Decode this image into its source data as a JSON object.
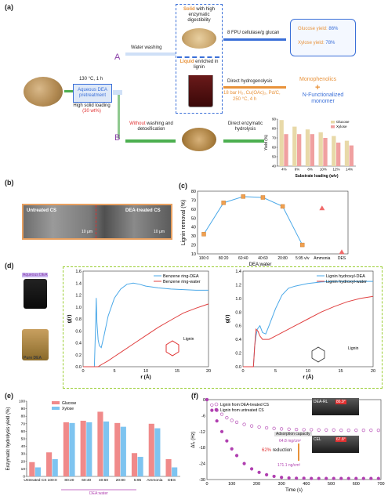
{
  "panel_labels": {
    "a": "(a)",
    "b": "(b)",
    "c": "(c)",
    "d": "(d)",
    "e": "(e)",
    "f": "(f)"
  },
  "panel_a": {
    "pretreat_conditions": "130 °C, 1 h",
    "pretreat_box": "Aqueous DEA pretreatment",
    "solid_loading": "High solid loading",
    "solid_loading_pct": "(30 wt%)",
    "route_A": "A",
    "route_B": "B",
    "water_washing": "Water washing",
    "solid_bold": "Solid",
    "solid_desc": "with high enzymatic digestibility",
    "liquid_bold": "Liquid",
    "liquid_desc": "enriched in lignin",
    "enzyme_dose": "8 FPU cellulase/g glucan",
    "glucose_yield_label": "Glucose yield: ",
    "glucose_yield_value": "86%",
    "xylose_yield_label": "Xylose yield: ",
    "xylose_yield_value": "78%",
    "hydrogenolysis": "Direct hydrogenolysis",
    "hydro_conditions_1": "18 bar H₂, Cu(OAc)₂, Pd/C,",
    "hydro_conditions_2": "250 °C, 4 h",
    "monophenolics": "Monophenolics",
    "plus": "+",
    "n_functionalized": "N-Functionalized monomer",
    "without_bold": "Without",
    "without_rest": "washing and detoxification",
    "direct_enzymatic": "Direct enzymatic hydrolysis",
    "colors": {
      "orange": "#e8923a",
      "blue": "#3a6fd8",
      "purple": "#8a3fa8",
      "green": "#4caf50",
      "red": "#e03030"
    }
  },
  "panel_b": {
    "untreated_label": "Untreated CS",
    "dea_label": "DEA-treated CS",
    "scale_bar_1": "10 μm",
    "scale_bar_2": "10 μm"
  },
  "panel_d": {
    "aqueous_dea": "Aqueous DEA",
    "pure_dea": "Pure DEA",
    "lignin_label": "Lignin"
  },
  "panel_f": {
    "inset_top": "DEA-RL",
    "inset_top_angle": "86.9°",
    "inset_bottom": "CEL",
    "inset_bottom_angle": "67.8°",
    "adsorption": "Adsorption capacity",
    "capacity_value": "64.8 mg/cm²",
    "reduction_pct": "62%",
    "reduction_word": "reduction",
    "capacity_value_2": "171.1 ng/cm²"
  },
  "chart_data": [
    {
      "id": "a-inset",
      "type": "bar",
      "categories": [
        "4%",
        "6%",
        "8%",
        "10%",
        "12%",
        "14%"
      ],
      "series": [
        {
          "name": "Glucose",
          "values": [
            89,
            82,
            79,
            76,
            72,
            67
          ],
          "color": "#e8d9a8"
        },
        {
          "name": "Xylose",
          "values": [
            74,
            74,
            74,
            70,
            65,
            62
          ],
          "color": "#f0a0a0"
        }
      ],
      "xlabel": "Substrate loading (w/v)",
      "ylabel": "Yield (%)",
      "ylim": [
        40,
        90
      ],
      "yticks": [
        40,
        50,
        60,
        70,
        80,
        90
      ],
      "legend": "top-right"
    },
    {
      "id": "c",
      "type": "scatter",
      "categories": [
        "100:0",
        "80:20",
        "60:40",
        "40:60",
        "20:80",
        "5:95 v/v",
        "Ammonia",
        "DES"
      ],
      "values": [
        32,
        67,
        74,
        73,
        63,
        20,
        61,
        12
      ],
      "xlabel": "DEA:water",
      "ylabel": "Lignin removal  (%)",
      "ylim": [
        10,
        80
      ],
      "yticks": [
        10,
        20,
        30,
        40,
        50,
        60,
        70,
        80
      ]
    },
    {
      "id": "d-left",
      "type": "line",
      "xlabel": "r (Å)",
      "ylabel": "g(r)",
      "xlim": [
        0,
        20
      ],
      "ylim": [
        0,
        1.6
      ],
      "yticks": [
        0.0,
        0.2,
        0.4,
        0.6,
        0.8,
        1.0,
        1.2,
        1.4,
        1.6
      ],
      "xticks": [
        0,
        5,
        10,
        15,
        20
      ],
      "series": [
        {
          "name": "Benzene ring-DEA",
          "color": "#4aa8e8",
          "x": [
            0,
            1.8,
            2.0,
            2.1,
            2.2,
            2.4,
            2.6,
            2.9,
            3.3,
            4,
            5,
            6,
            7,
            8,
            9,
            10,
            12,
            14,
            16,
            18,
            20
          ],
          "y": [
            0,
            0,
            0.7,
            1.15,
            0.75,
            0.45,
            0.35,
            0.32,
            0.5,
            0.85,
            1.15,
            1.3,
            1.38,
            1.4,
            1.38,
            1.35,
            1.32,
            1.3,
            1.29,
            1.28,
            1.28
          ]
        },
        {
          "name": "Benzene ring-water",
          "color": "#e04040",
          "x": [
            0,
            2.4,
            3,
            4,
            5,
            6,
            8,
            10,
            12,
            14,
            16,
            18,
            20
          ],
          "y": [
            0,
            0,
            0.04,
            0.1,
            0.17,
            0.24,
            0.38,
            0.52,
            0.66,
            0.78,
            0.9,
            0.98,
            1.05
          ]
        }
      ]
    },
    {
      "id": "d-right",
      "type": "line",
      "xlabel": "r (Å)",
      "ylabel": "g(r)",
      "xlim": [
        0,
        20
      ],
      "ylim": [
        0,
        1.4
      ],
      "yticks": [
        0.0,
        0.2,
        0.4,
        0.6,
        0.8,
        1.0,
        1.2,
        1.4
      ],
      "xticks": [
        0,
        5,
        10,
        15,
        20
      ],
      "series": [
        {
          "name": "Lignin hydroxyl-DEA",
          "color": "#4aa8e8",
          "x": [
            0,
            1.6,
            1.8,
            2.0,
            2.2,
            2.6,
            3,
            3.5,
            4,
            5,
            6,
            7,
            8,
            10,
            12,
            14,
            16,
            18,
            20
          ],
          "y": [
            0,
            0,
            0.3,
            0.45,
            0.55,
            0.6,
            0.5,
            0.48,
            0.6,
            0.85,
            1.05,
            1.15,
            1.18,
            1.22,
            1.24,
            1.25,
            1.25,
            1.25,
            1.25
          ]
        },
        {
          "name": "Lignin hydroxyl-water",
          "color": "#e04040",
          "x": [
            0,
            1.6,
            1.8,
            2,
            2.3,
            2.6,
            3,
            4,
            5,
            6,
            8,
            10,
            12,
            14,
            16,
            18,
            20
          ],
          "y": [
            0,
            0,
            0.3,
            0.55,
            0.52,
            0.45,
            0.4,
            0.4,
            0.45,
            0.5,
            0.6,
            0.7,
            0.8,
            0.88,
            0.95,
            1.0,
            1.03
          ]
        }
      ]
    },
    {
      "id": "e",
      "type": "bar",
      "categories": [
        "Untreated CS",
        "100:0",
        "80:20",
        "60:40",
        "40:60",
        "20:80",
        "5:95",
        "Ammonia",
        "DES"
      ],
      "group_label": "DEA:water",
      "series": [
        {
          "name": "Glucose",
          "values": [
            19,
            32,
            72,
            74,
            86,
            71,
            31,
            70,
            23
          ],
          "color": "#f08a8a"
        },
        {
          "name": "Xylose",
          "values": [
            12,
            23,
            71,
            72,
            73,
            66,
            26,
            64,
            12
          ],
          "color": "#7ec4f0"
        }
      ],
      "ylabel": "Enzymatic hydrolysis yield (%)",
      "ylim": [
        0,
        100
      ],
      "yticks": [
        0,
        10,
        20,
        30,
        40,
        50,
        60,
        70,
        80,
        90,
        100
      ],
      "legend": "top-left"
    },
    {
      "id": "f",
      "type": "line",
      "xlabel": "Time (s)",
      "ylabel": "Δf₃ (Hz)",
      "xlim": [
        0,
        700
      ],
      "ylim": [
        -30,
        0
      ],
      "xticks": [
        0,
        100,
        200,
        300,
        400,
        500,
        600,
        700
      ],
      "yticks": [
        0,
        -6,
        -12,
        -18,
        -24,
        -30
      ],
      "series": [
        {
          "name": "Lignin from DEA-treated CS",
          "marker": "open",
          "color": "#b03fb0",
          "x": [
            0,
            20,
            40,
            60,
            80,
            100,
            120,
            150,
            180,
            210,
            240,
            270,
            300,
            330,
            360,
            390,
            420,
            450,
            480,
            510,
            540,
            570,
            600,
            630,
            660,
            690
          ],
          "y": [
            0,
            -2,
            -4,
            -5.5,
            -6.8,
            -7.8,
            -8.5,
            -9.3,
            -9.9,
            -10.3,
            -10.6,
            -10.8,
            -11,
            -11.1,
            -11.2,
            -11.3,
            -11.3,
            -11.4,
            -11.4,
            -11.4,
            -11.5,
            -11.5,
            -11.5,
            -11.5,
            -11.5,
            -11.5
          ]
        },
        {
          "name": "Lignin from untreated CS",
          "marker": "filled",
          "color": "#b03fb0",
          "x": [
            0,
            20,
            40,
            60,
            80,
            100,
            120,
            150,
            180,
            210,
            240,
            270,
            300,
            330,
            360,
            390,
            420,
            450,
            480,
            510,
            540,
            570,
            600,
            630,
            660,
            690
          ],
          "y": [
            0,
            -4,
            -8,
            -12,
            -15.5,
            -18.5,
            -21,
            -24,
            -26,
            -27.3,
            -28.2,
            -28.8,
            -29.2,
            -29.4,
            -29.5,
            -29.5,
            -29.6,
            -29.6,
            -29.6,
            -29.6,
            -29.6,
            -29.6,
            -29.6,
            -29.6,
            -29.6,
            -29.6
          ]
        }
      ]
    }
  ]
}
